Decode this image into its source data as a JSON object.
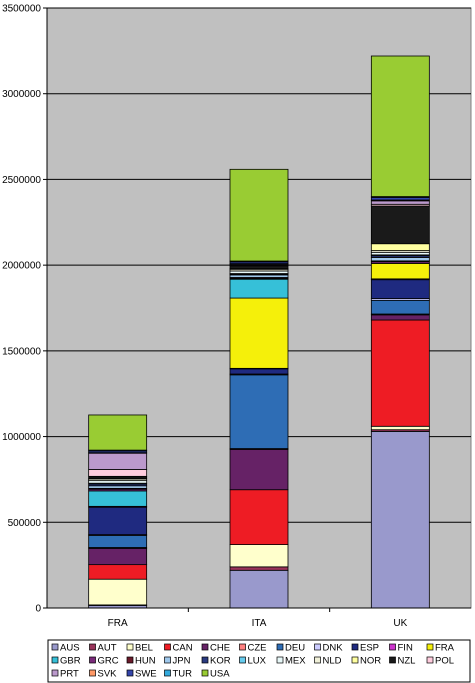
{
  "chart_data": {
    "type": "bar",
    "stacked": true,
    "categories": [
      "FRA",
      "ITA",
      "UK"
    ],
    "ylim": [
      0,
      3500000
    ],
    "yticks": [
      0,
      500000,
      1000000,
      1500000,
      2000000,
      2500000,
      3000000,
      3500000
    ],
    "ytick_labels": [
      "0",
      "500000",
      "1000000",
      "1500000",
      "2000000",
      "2500000",
      "3000000",
      "3500000"
    ],
    "grid": true,
    "plot_background": "#c0c0c0",
    "legend_position": "bottom",
    "series": [
      {
        "name": "AUS",
        "color": "#9999cc",
        "values": [
          15000,
          220000,
          1030000
        ]
      },
      {
        "name": "AUT",
        "color": "#99335a",
        "values": [
          3000,
          20000,
          10000
        ]
      },
      {
        "name": "BEL",
        "color": "#ffffcc",
        "values": [
          150000,
          130000,
          20000
        ]
      },
      {
        "name": "CAN",
        "color": "#ee1c24",
        "values": [
          85000,
          320000,
          620000
        ]
      },
      {
        "name": "CHE",
        "color": "#662266",
        "values": [
          95000,
          235000,
          30000
        ]
      },
      {
        "name": "CZE",
        "color": "#ff8080",
        "values": [
          5000,
          5000,
          5000
        ]
      },
      {
        "name": "DEU",
        "color": "#2e6db5",
        "values": [
          70000,
          430000,
          80000
        ]
      },
      {
        "name": "DNK",
        "color": "#ccccff",
        "values": [
          5000,
          5000,
          10000
        ]
      },
      {
        "name": "ESP",
        "color": "#1f2a80",
        "values": [
          160000,
          30000,
          110000
        ]
      },
      {
        "name": "FIN",
        "color": "#cc33cc",
        "values": [
          5000,
          3000,
          5000
        ]
      },
      {
        "name": "FRA",
        "color": "#f5f00a",
        "values": [
          0,
          410000,
          90000
        ]
      },
      {
        "name": "GBR",
        "color": "#36c0d8",
        "values": [
          90000,
          110000,
          0
        ]
      },
      {
        "name": "GRC",
        "color": "#7a2a7a",
        "values": [
          10000,
          5000,
          10000
        ]
      },
      {
        "name": "HUN",
        "color": "#6a1a2a",
        "values": [
          5000,
          5000,
          5000
        ]
      },
      {
        "name": "JPN",
        "color": "#9fc8ec",
        "values": [
          15000,
          15000,
          20000
        ]
      },
      {
        "name": "KOR",
        "color": "#2a3a80",
        "values": [
          10000,
          5000,
          10000
        ]
      },
      {
        "name": "LUX",
        "color": "#66ccee",
        "values": [
          5000,
          3000,
          5000
        ]
      },
      {
        "name": "MEX",
        "color": "#e8f8f8",
        "values": [
          15000,
          15000,
          15000
        ]
      },
      {
        "name": "NLD",
        "color": "#f0f0d8",
        "values": [
          10000,
          10000,
          10000
        ]
      },
      {
        "name": "NOR",
        "color": "#ffffa0",
        "values": [
          5000,
          5000,
          40000
        ]
      },
      {
        "name": "NZL",
        "color": "#1a1a1a",
        "values": [
          10000,
          15000,
          220000
        ]
      },
      {
        "name": "POL",
        "color": "#ffccdd",
        "values": [
          40000,
          5000,
          10000
        ]
      },
      {
        "name": "PRT",
        "color": "#bb99cc",
        "values": [
          95000,
          5000,
          20000
        ]
      },
      {
        "name": "SVK",
        "color": "#ff9966",
        "values": [
          3000,
          3000,
          5000
        ]
      },
      {
        "name": "SWE",
        "color": "#3344aa",
        "values": [
          10000,
          10000,
          15000
        ]
      },
      {
        "name": "TUR",
        "color": "#33aadd",
        "values": [
          5000,
          5000,
          5000
        ]
      },
      {
        "name": "USA",
        "color": "#99cc33",
        "values": [
          205000,
          535000,
          820000
        ]
      }
    ]
  }
}
